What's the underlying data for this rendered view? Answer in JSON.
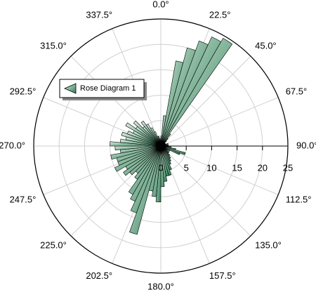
{
  "chart_data": {
    "type": "rose",
    "series": [
      {
        "name": "Rose Diagram 1",
        "color": "#2f7d55",
        "bins": [
          0,
          5,
          10,
          15,
          20,
          25,
          30,
          35,
          40,
          45,
          50,
          55,
          60,
          65,
          70,
          75,
          80,
          85,
          90,
          95,
          100,
          105,
          110,
          115,
          120,
          125,
          130,
          135,
          140,
          145,
          150,
          155,
          160,
          165,
          170,
          175,
          180,
          185,
          190,
          195,
          200,
          205,
          210,
          215,
          220,
          225,
          230,
          235,
          240,
          245,
          250,
          255,
          260,
          265,
          270,
          275,
          280,
          285,
          290,
          295,
          300,
          305,
          310,
          315,
          320,
          325,
          330,
          335,
          340,
          345,
          350,
          355,
          360
        ],
        "values": [
          2,
          6,
          17,
          20,
          22,
          23.7,
          24.5,
          3,
          2,
          1.5,
          1,
          1,
          1,
          1,
          1.5,
          1,
          1.5,
          1,
          2,
          2,
          3,
          5,
          4,
          2,
          1.5,
          2,
          2,
          2.5,
          3,
          3.5,
          4,
          5,
          6,
          6,
          7,
          8,
          11,
          10,
          9,
          18,
          14,
          12,
          11,
          8,
          7,
          8,
          9,
          8,
          10,
          9,
          9,
          10,
          8,
          9,
          10,
          8,
          7,
          8,
          7,
          6,
          8,
          6,
          7,
          5,
          6,
          5,
          4,
          3,
          2,
          2,
          1.5,
          1
        ]
      }
    ],
    "xlim": [
      0,
      360
    ],
    "xticks": [
      {
        "value": 0,
        "label": "0.0°"
      },
      {
        "value": 22.5,
        "label": "22.5°"
      },
      {
        "value": 45,
        "label": "45.0°"
      },
      {
        "value": 67.5,
        "label": "67.5°"
      },
      {
        "value": 90,
        "label": "90.0°"
      },
      {
        "value": 112.5,
        "label": "112.5°"
      },
      {
        "value": 135,
        "label": "135.0°"
      },
      {
        "value": 157.5,
        "label": "157.5°"
      },
      {
        "value": 180,
        "label": "180.0°"
      },
      {
        "value": 202.5,
        "label": "202.5°"
      },
      {
        "value": 225,
        "label": "225.0°"
      },
      {
        "value": 247.5,
        "label": "247.5°"
      },
      {
        "value": 270,
        "label": "270.0°"
      },
      {
        "value": 292.5,
        "label": "292.5°"
      },
      {
        "value": 315,
        "label": "315.0°"
      },
      {
        "value": 337.5,
        "label": "337.5°"
      }
    ],
    "ylim": [
      0,
      25
    ],
    "yticks": [
      0,
      5,
      10,
      15,
      20,
      25
    ],
    "grid": true
  }
}
